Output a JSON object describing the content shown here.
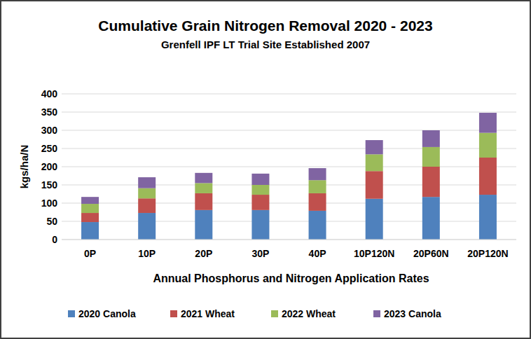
{
  "chart_data": {
    "type": "bar",
    "stacked": true,
    "title": "Cumulative Grain Nitrogen  Removal 2020 - 2023",
    "subtitle": "Grenfell IPF LT Trial Site Established 2007",
    "x_label": "Annual Phosphorus and Nitrogen Application Rates",
    "y_label": "kgs/ha/N",
    "categories": [
      "0P",
      "10P",
      "20P",
      "30P",
      "40P",
      "10P120N",
      "20P60N",
      "20P120N"
    ],
    "series": [
      {
        "name": "2020 Canola",
        "color": "#4f81bd",
        "values": [
          48,
          73,
          81,
          81,
          79,
          112,
          117,
          123
        ]
      },
      {
        "name": "2021 Wheat",
        "color": "#c0504d",
        "values": [
          25,
          40,
          46,
          42,
          48,
          76,
          83,
          102
        ]
      },
      {
        "name": "2022 Wheat",
        "color": "#9bbb59",
        "values": [
          25,
          28,
          28,
          27,
          36,
          46,
          54,
          68
        ]
      },
      {
        "name": "2023 Canola",
        "color": "#8064a2",
        "values": [
          19,
          30,
          28,
          31,
          33,
          39,
          46,
          55
        ]
      }
    ],
    "ylim": [
      0,
      400
    ],
    "yticks": [
      0,
      50,
      100,
      150,
      200,
      250,
      300,
      350,
      400
    ],
    "grid": true,
    "legend": "bottom"
  }
}
